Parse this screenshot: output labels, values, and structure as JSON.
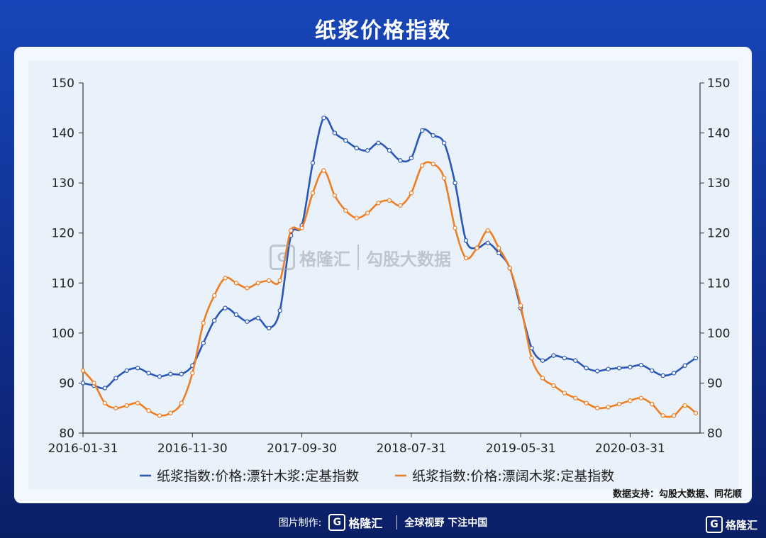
{
  "title": "纸浆价格指数",
  "source": "数据支持：勾股大数据、同花顺",
  "footer": {
    "made_by": "图片制作:",
    "logo_text": "格隆汇",
    "slogan": "全球视野 下注中国"
  },
  "corner_logo": "格隆汇",
  "watermark": {
    "brand": "格隆汇",
    "text": "勾股大数据"
  },
  "colors": {
    "series1": "#2a56b8",
    "series2": "#ef7d22"
  },
  "chart_data": {
    "type": "line",
    "title": "纸浆价格指数",
    "ylim": [
      80,
      150
    ],
    "yticks": [
      80,
      90,
      100,
      110,
      120,
      130,
      140,
      150
    ],
    "right_axis": true,
    "grid": false,
    "legend_position": "bottom",
    "xtick_labels": [
      "2016-01-31",
      "2016-11-30",
      "2017-09-30",
      "2018-07-31",
      "2019-05-31",
      "2020-03-31"
    ],
    "xtick_index": [
      0,
      10,
      20,
      30,
      40,
      50
    ],
    "x": [
      "2016-01",
      "2016-02",
      "2016-03",
      "2016-04",
      "2016-05",
      "2016-06",
      "2016-07",
      "2016-08",
      "2016-09",
      "2016-10",
      "2016-11",
      "2016-12",
      "2017-01",
      "2017-02",
      "2017-03",
      "2017-04",
      "2017-05",
      "2017-06",
      "2017-07",
      "2017-08",
      "2017-09",
      "2017-10",
      "2017-11",
      "2017-12",
      "2018-01",
      "2018-02",
      "2018-03",
      "2018-04",
      "2018-05",
      "2018-06",
      "2018-07",
      "2018-08",
      "2018-09",
      "2018-10",
      "2018-11",
      "2018-12",
      "2019-01",
      "2019-02",
      "2019-03",
      "2019-04",
      "2019-05",
      "2019-06",
      "2019-07",
      "2019-08",
      "2019-09",
      "2019-10",
      "2019-11",
      "2019-12",
      "2020-01",
      "2020-02",
      "2020-03",
      "2020-04",
      "2020-05",
      "2020-06",
      "2020-07",
      "2020-08",
      "2020-09"
    ],
    "series": [
      {
        "name": "纸浆指数:价格:漂针木浆:定基指数",
        "values": [
          90.0,
          89.5,
          89.0,
          91.0,
          92.5,
          93.0,
          92.0,
          91.3,
          91.8,
          91.8,
          93.5,
          98.0,
          102.5,
          105.0,
          103.7,
          102.3,
          103.0,
          101.0,
          104.5,
          119.5,
          121.5,
          134.0,
          143.0,
          140.0,
          138.5,
          137.0,
          136.5,
          138.0,
          136.5,
          134.5,
          135.0,
          140.5,
          139.5,
          138.0,
          130.0,
          118.5,
          117.0,
          118.0,
          116.0,
          113.0,
          105.0,
          97.0,
          94.5,
          95.5,
          95.0,
          94.5,
          93.0,
          92.4,
          92.8,
          93.0,
          93.2,
          93.6,
          92.5,
          91.5,
          92.0,
          93.5,
          95.0
        ]
      },
      {
        "name": "纸浆指数:价格:漂阔木浆:定基指数",
        "values": [
          92.5,
          90.0,
          86.0,
          85.0,
          85.5,
          86.0,
          84.5,
          83.5,
          84.0,
          86.0,
          92.0,
          102.0,
          107.5,
          111.0,
          110.0,
          109.0,
          110.0,
          110.5,
          110.5,
          120.5,
          121.0,
          128.0,
          132.5,
          127.5,
          124.5,
          123.0,
          124.0,
          126.0,
          126.5,
          125.5,
          128.0,
          133.5,
          133.8,
          131.0,
          121.0,
          115.0,
          117.0,
          120.5,
          117.0,
          113.0,
          105.5,
          95.0,
          91.0,
          89.5,
          88.0,
          87.0,
          86.0,
          85.0,
          85.2,
          85.8,
          86.5,
          87.0,
          85.8,
          83.5,
          83.5,
          85.5,
          84.0
        ]
      }
    ]
  }
}
